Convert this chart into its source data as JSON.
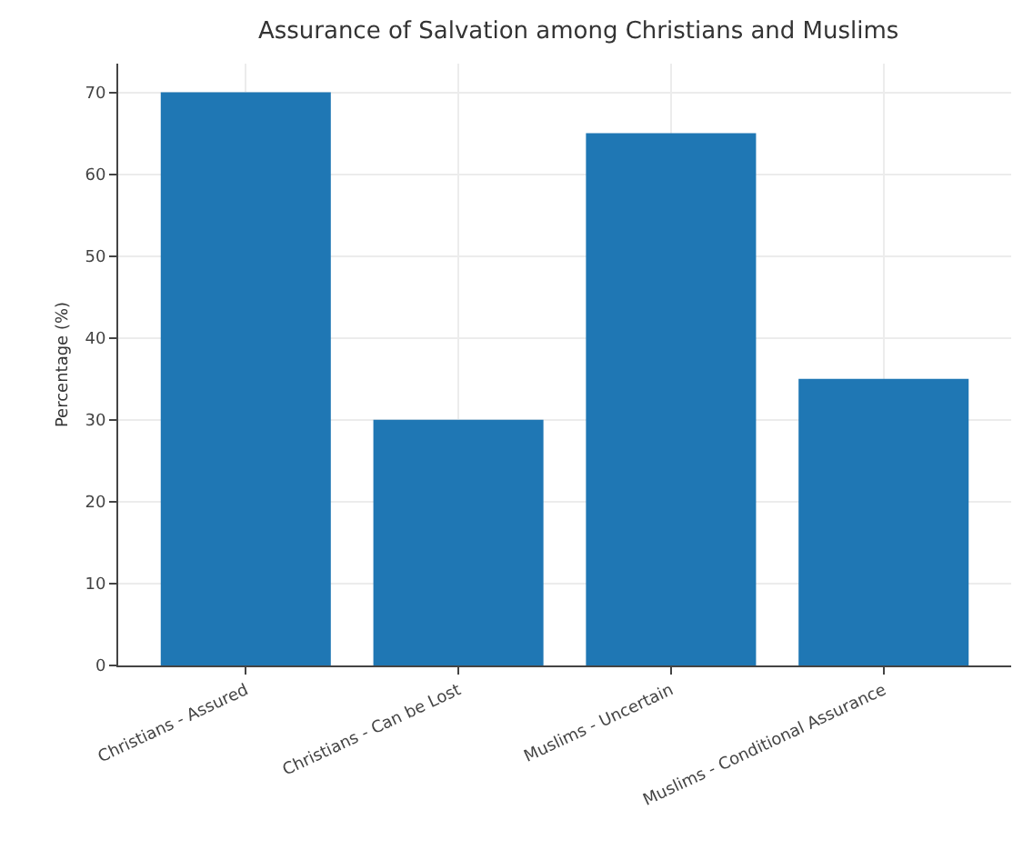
{
  "chart_data": {
    "type": "bar",
    "title": "Assurance of Salvation among Christians and Muslims",
    "ylabel": "Percentage (%)",
    "categories": [
      "Christians - Assured",
      "Christians - Can be Lost",
      "Muslims - Uncertain",
      "Muslims - Conditional Assurance"
    ],
    "values": [
      70,
      30,
      65,
      35
    ],
    "color": "#1f77b4",
    "ylim": [
      0,
      73.5
    ],
    "yticks": [
      0,
      10,
      20,
      30,
      40,
      50,
      60,
      70
    ],
    "grid": true
  }
}
